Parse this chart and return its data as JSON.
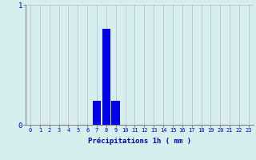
{
  "hours": [
    0,
    1,
    2,
    3,
    4,
    5,
    6,
    7,
    8,
    9,
    10,
    11,
    12,
    13,
    14,
    15,
    16,
    17,
    18,
    19,
    20,
    21,
    22,
    23
  ],
  "values": [
    0,
    0,
    0,
    0,
    0,
    0,
    0,
    0.2,
    0.8,
    0.2,
    0,
    0,
    0,
    0,
    0,
    0,
    0,
    0,
    0,
    0,
    0,
    0,
    0,
    0
  ],
  "bar_color": "#0000ee",
  "background_color": "#d6eeee",
  "grid_color_v": "#c0b8b8",
  "xlabel": "Précipitations 1h ( mm )",
  "xlabel_color": "#0000cc",
  "xlabel_fontsize": 6.5,
  "tick_color": "#0000cc",
  "tick_fontsize": 5.0,
  "ytick_fontsize": 6.5,
  "ylim": [
    0,
    1
  ],
  "xlim": [
    -0.5,
    23.5
  ],
  "yticks": [
    0,
    1
  ],
  "xticks": [
    0,
    1,
    2,
    3,
    4,
    5,
    6,
    7,
    8,
    9,
    10,
    11,
    12,
    13,
    14,
    15,
    16,
    17,
    18,
    19,
    20,
    21,
    22,
    23
  ],
  "spine_color": "#888888"
}
